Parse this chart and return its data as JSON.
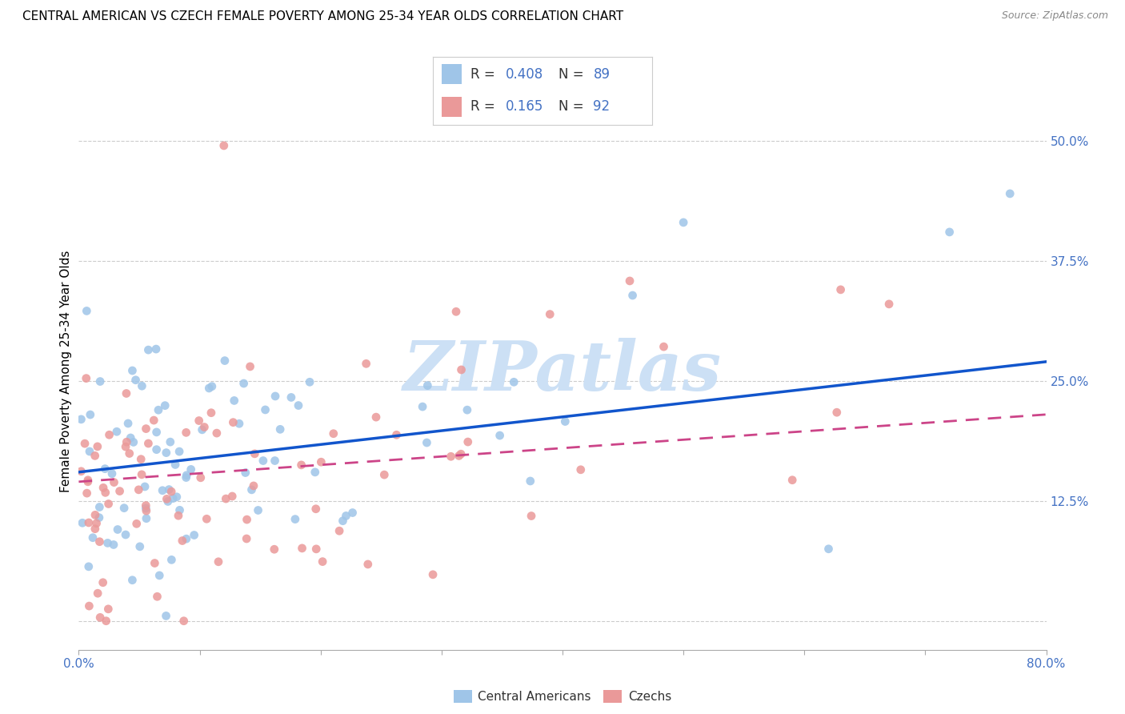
{
  "title": "CENTRAL AMERICAN VS CZECH FEMALE POVERTY AMONG 25-34 YEAR OLDS CORRELATION CHART",
  "source": "Source: ZipAtlas.com",
  "ylabel": "Female Poverty Among 25-34 Year Olds",
  "xlim": [
    0.0,
    0.8
  ],
  "ylim": [
    -0.03,
    0.55
  ],
  "xtick_positions": [
    0.0,
    0.1,
    0.2,
    0.3,
    0.4,
    0.5,
    0.6,
    0.7,
    0.8
  ],
  "ytick_positions": [
    0.0,
    0.125,
    0.25,
    0.375,
    0.5
  ],
  "ytick_labels": [
    "",
    "12.5%",
    "25.0%",
    "37.5%",
    "50.0%"
  ],
  "R_blue": 0.408,
  "N_blue": 89,
  "R_pink": 0.165,
  "N_pink": 92,
  "blue_scatter_color": "#9fc5e8",
  "pink_scatter_color": "#ea9999",
  "line_blue_color": "#1155cc",
  "line_pink_color": "#cc4488",
  "background_color": "#ffffff",
  "grid_color": "#aaaaaa",
  "title_color": "#000000",
  "axis_label_color": "#000000",
  "tick_label_color": "#4472c4",
  "legend_label_color": "#4472c4",
  "watermark_color": "#cce0f5",
  "watermark_text": "ZIPatlas",
  "legend_R_label_color": "#333333",
  "bottom_legend_label_color": "#333333"
}
